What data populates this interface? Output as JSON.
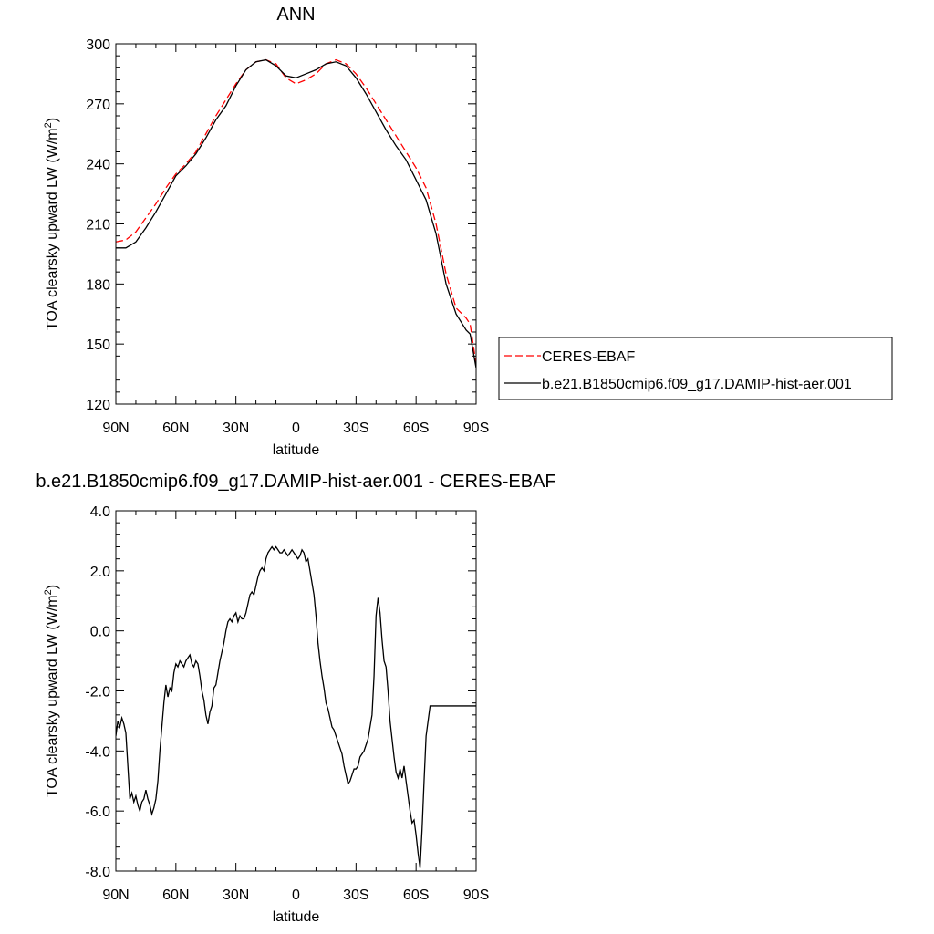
{
  "chart_data": [
    {
      "type": "line",
      "title": "ANN",
      "xlabel": "latitude",
      "ylabel": "TOA clearsky upward LW (W/m2)",
      "ylabel_main": "TOA clearsky upward LW (W/m",
      "ylabel_sup": "2",
      "ylabel_end": ")",
      "xlim": [
        90,
        -90
      ],
      "ylim": [
        120,
        300
      ],
      "xticks": [
        {
          "value": 90,
          "label": "90N"
        },
        {
          "value": 60,
          "label": "60N"
        },
        {
          "value": 30,
          "label": "30N"
        },
        {
          "value": 0,
          "label": "0"
        },
        {
          "value": -30,
          "label": "30S"
        },
        {
          "value": -60,
          "label": "60S"
        },
        {
          "value": -90,
          "label": "90S"
        }
      ],
      "yticks": [
        {
          "value": 300,
          "label": "300"
        },
        {
          "value": 270,
          "label": "270"
        },
        {
          "value": 240,
          "label": "240"
        },
        {
          "value": 210,
          "label": "210"
        },
        {
          "value": 180,
          "label": "180"
        },
        {
          "value": 150,
          "label": "150"
        },
        {
          "value": 120,
          "label": "120"
        }
      ],
      "legend_position": "right",
      "series": [
        {
          "name": "CERES-EBAF",
          "color": "#ff0000",
          "dash": "dashed",
          "points": [
            [
              90,
              201
            ],
            [
              85,
              202
            ],
            [
              80,
              206
            ],
            [
              75,
              213
            ],
            [
              70,
              220
            ],
            [
              65,
              228
            ],
            [
              60,
              235
            ],
            [
              55,
              240
            ],
            [
              50,
              246
            ],
            [
              45,
              255
            ],
            [
              40,
              264
            ],
            [
              35,
              272
            ],
            [
              30,
              280
            ],
            [
              25,
              287
            ],
            [
              20,
              291
            ],
            [
              15,
              292
            ],
            [
              10,
              290
            ],
            [
              5,
              283
            ],
            [
              0,
              280
            ],
            [
              -5,
              282
            ],
            [
              -10,
              285
            ],
            [
              -15,
              290
            ],
            [
              -20,
              292
            ],
            [
              -25,
              290
            ],
            [
              -30,
              285
            ],
            [
              -35,
              278
            ],
            [
              -40,
              270
            ],
            [
              -45,
              262
            ],
            [
              -50,
              254
            ],
            [
              -55,
              246
            ],
            [
              -60,
              238
            ],
            [
              -65,
              228
            ],
            [
              -70,
              210
            ],
            [
              -75,
              185
            ],
            [
              -80,
              168
            ],
            [
              -85,
              163
            ],
            [
              -87,
              160
            ],
            [
              -90,
              140
            ]
          ]
        },
        {
          "name": "b.e21.B1850cmip6.f09_g17.DAMIP-hist-aer.001",
          "color": "#000000",
          "dash": "solid",
          "points": [
            [
              90,
              198
            ],
            [
              85,
              198
            ],
            [
              80,
              201
            ],
            [
              75,
              208
            ],
            [
              70,
              216
            ],
            [
              65,
              225
            ],
            [
              60,
              234
            ],
            [
              55,
              239
            ],
            [
              50,
              245
            ],
            [
              45,
              253
            ],
            [
              40,
              262
            ],
            [
              35,
              269
            ],
            [
              30,
              279
            ],
            [
              25,
              287
            ],
            [
              20,
              291
            ],
            [
              15,
              292
            ],
            [
              10,
              289
            ],
            [
              5,
              284
            ],
            [
              0,
              283
            ],
            [
              -5,
              285
            ],
            [
              -10,
              287
            ],
            [
              -15,
              290
            ],
            [
              -20,
              291
            ],
            [
              -25,
              289
            ],
            [
              -30,
              283
            ],
            [
              -35,
              275
            ],
            [
              -40,
              266
            ],
            [
              -45,
              257
            ],
            [
              -50,
              249
            ],
            [
              -55,
              242
            ],
            [
              -60,
              232
            ],
            [
              -65,
              222
            ],
            [
              -70,
              205
            ],
            [
              -75,
              180
            ],
            [
              -80,
              165
            ],
            [
              -85,
              157
            ],
            [
              -87,
              155
            ],
            [
              -90,
              138
            ]
          ]
        }
      ]
    },
    {
      "type": "line",
      "title": "b.e21.B1850cmip6.f09_g17.DAMIP-hist-aer.001 - CERES-EBAF",
      "xlabel": "latitude",
      "ylabel": "TOA clearsky upward LW (W/m2)",
      "ylabel_main": "TOA clearsky upward LW (W/m",
      "ylabel_sup": "2",
      "ylabel_end": ")",
      "xlim": [
        90,
        -90
      ],
      "ylim": [
        -8,
        4
      ],
      "xticks": [
        {
          "value": 90,
          "label": "90N"
        },
        {
          "value": 60,
          "label": "60N"
        },
        {
          "value": 30,
          "label": "30N"
        },
        {
          "value": 0,
          "label": "0"
        },
        {
          "value": -30,
          "label": "30S"
        },
        {
          "value": -60,
          "label": "60S"
        },
        {
          "value": -90,
          "label": "90S"
        }
      ],
      "yticks": [
        {
          "value": 4,
          "label": "4.0"
        },
        {
          "value": 2,
          "label": "2.0"
        },
        {
          "value": 0,
          "label": "0.0"
        },
        {
          "value": -2,
          "label": "-2.0"
        },
        {
          "value": -4,
          "label": "-4.0"
        },
        {
          "value": -6,
          "label": "-6.0"
        },
        {
          "value": -8,
          "label": "-8.0"
        }
      ],
      "series": [
        {
          "color": "#000000",
          "dash": "solid",
          "points": [
            [
              90,
              -3.5
            ],
            [
              89,
              -3.0
            ],
            [
              88,
              -3.2
            ],
            [
              87,
              -2.9
            ],
            [
              86,
              -3.1
            ],
            [
              85,
              -3.4
            ],
            [
              84,
              -4.5
            ],
            [
              83,
              -5.6
            ],
            [
              82,
              -5.4
            ],
            [
              81,
              -5.7
            ],
            [
              80,
              -5.5
            ],
            [
              79,
              -5.8
            ],
            [
              78,
              -6.0
            ],
            [
              77,
              -5.7
            ],
            [
              76,
              -5.6
            ],
            [
              75,
              -5.3
            ],
            [
              74,
              -5.6
            ],
            [
              73,
              -5.8
            ],
            [
              72,
              -6.1
            ],
            [
              71,
              -5.9
            ],
            [
              70,
              -5.6
            ],
            [
              69,
              -5.0
            ],
            [
              68,
              -4.0
            ],
            [
              67,
              -3.2
            ],
            [
              66,
              -2.4
            ],
            [
              65,
              -1.8
            ],
            [
              64,
              -2.2
            ],
            [
              63,
              -1.9
            ],
            [
              62,
              -2.0
            ],
            [
              61,
              -1.4
            ],
            [
              60,
              -1.1
            ],
            [
              59,
              -1.2
            ],
            [
              58,
              -1.0
            ],
            [
              57,
              -1.1
            ],
            [
              56,
              -1.2
            ],
            [
              55,
              -1.0
            ],
            [
              54,
              -0.9
            ],
            [
              53,
              -0.8
            ],
            [
              52,
              -1.1
            ],
            [
              51,
              -1.2
            ],
            [
              50,
              -1.0
            ],
            [
              49,
              -1.1
            ],
            [
              48,
              -1.5
            ],
            [
              47,
              -2.0
            ],
            [
              46,
              -2.3
            ],
            [
              45,
              -2.8
            ],
            [
              44,
              -3.1
            ],
            [
              43,
              -2.7
            ],
            [
              42,
              -2.5
            ],
            [
              41,
              -1.9
            ],
            [
              40,
              -1.8
            ],
            [
              39,
              -1.4
            ],
            [
              38,
              -1.0
            ],
            [
              37,
              -0.7
            ],
            [
              36,
              -0.4
            ],
            [
              35,
              0.0
            ],
            [
              34,
              0.3
            ],
            [
              33,
              0.4
            ],
            [
              32,
              0.3
            ],
            [
              31,
              0.5
            ],
            [
              30,
              0.6
            ],
            [
              29,
              0.3
            ],
            [
              28,
              0.5
            ],
            [
              27,
              0.4
            ],
            [
              26,
              0.4
            ],
            [
              25,
              0.6
            ],
            [
              24,
              0.9
            ],
            [
              23,
              1.2
            ],
            [
              22,
              1.3
            ],
            [
              21,
              1.2
            ],
            [
              20,
              1.5
            ],
            [
              19,
              1.8
            ],
            [
              18,
              2.0
            ],
            [
              17,
              2.1
            ],
            [
              16,
              2.0
            ],
            [
              15,
              2.4
            ],
            [
              14,
              2.6
            ],
            [
              13,
              2.7
            ],
            [
              12,
              2.8
            ],
            [
              11,
              2.7
            ],
            [
              10,
              2.8
            ],
            [
              9,
              2.7
            ],
            [
              8,
              2.6
            ],
            [
              7,
              2.6
            ],
            [
              6,
              2.7
            ],
            [
              5,
              2.6
            ],
            [
              4,
              2.5
            ],
            [
              3,
              2.6
            ],
            [
              2,
              2.7
            ],
            [
              1,
              2.6
            ],
            [
              0,
              2.5
            ],
            [
              -1,
              2.4
            ],
            [
              -2,
              2.5
            ],
            [
              -3,
              2.7
            ],
            [
              -4,
              2.6
            ],
            [
              -5,
              2.3
            ],
            [
              -6,
              2.4
            ],
            [
              -7,
              2.0
            ],
            [
              -8,
              1.6
            ],
            [
              -9,
              1.2
            ],
            [
              -10,
              0.5
            ],
            [
              -11,
              -0.4
            ],
            [
              -12,
              -1.0
            ],
            [
              -13,
              -1.5
            ],
            [
              -14,
              -1.9
            ],
            [
              -15,
              -2.4
            ],
            [
              -16,
              -2.6
            ],
            [
              -17,
              -2.9
            ],
            [
              -18,
              -3.2
            ],
            [
              -19,
              -3.3
            ],
            [
              -20,
              -3.5
            ],
            [
              -21,
              -3.7
            ],
            [
              -22,
              -3.9
            ],
            [
              -23,
              -4.1
            ],
            [
              -24,
              -4.5
            ],
            [
              -25,
              -4.8
            ],
            [
              -26,
              -5.1
            ],
            [
              -27,
              -5.0
            ],
            [
              -28,
              -4.8
            ],
            [
              -29,
              -4.6
            ],
            [
              -30,
              -4.6
            ],
            [
              -31,
              -4.5
            ],
            [
              -32,
              -4.2
            ],
            [
              -33,
              -4.1
            ],
            [
              -34,
              -4.0
            ],
            [
              -35,
              -3.8
            ],
            [
              -36,
              -3.6
            ],
            [
              -37,
              -3.2
            ],
            [
              -38,
              -2.8
            ],
            [
              -39,
              -1.5
            ],
            [
              -40,
              0.5
            ],
            [
              -41,
              1.1
            ],
            [
              -42,
              0.6
            ],
            [
              -43,
              -0.3
            ],
            [
              -44,
              -1.0
            ],
            [
              -45,
              -1.2
            ],
            [
              -46,
              -2.0
            ],
            [
              -47,
              -3.0
            ],
            [
              -48,
              -3.6
            ],
            [
              -49,
              -4.2
            ],
            [
              -50,
              -4.7
            ],
            [
              -51,
              -4.9
            ],
            [
              -52,
              -4.6
            ],
            [
              -53,
              -4.9
            ],
            [
              -54,
              -4.5
            ],
            [
              -55,
              -5.0
            ],
            [
              -56,
              -5.5
            ],
            [
              -57,
              -6.0
            ],
            [
              -58,
              -6.4
            ],
            [
              -59,
              -6.3
            ],
            [
              -60,
              -6.8
            ],
            [
              -61,
              -7.4
            ],
            [
              -62,
              -7.9
            ],
            [
              -63,
              -6.6
            ],
            [
              -64,
              -5.0
            ],
            [
              -65,
              -3.5
            ],
            [
              -66,
              -3.0
            ],
            [
              -67,
              -2.5
            ],
            [
              -90,
              -2.5
            ]
          ]
        }
      ]
    }
  ]
}
